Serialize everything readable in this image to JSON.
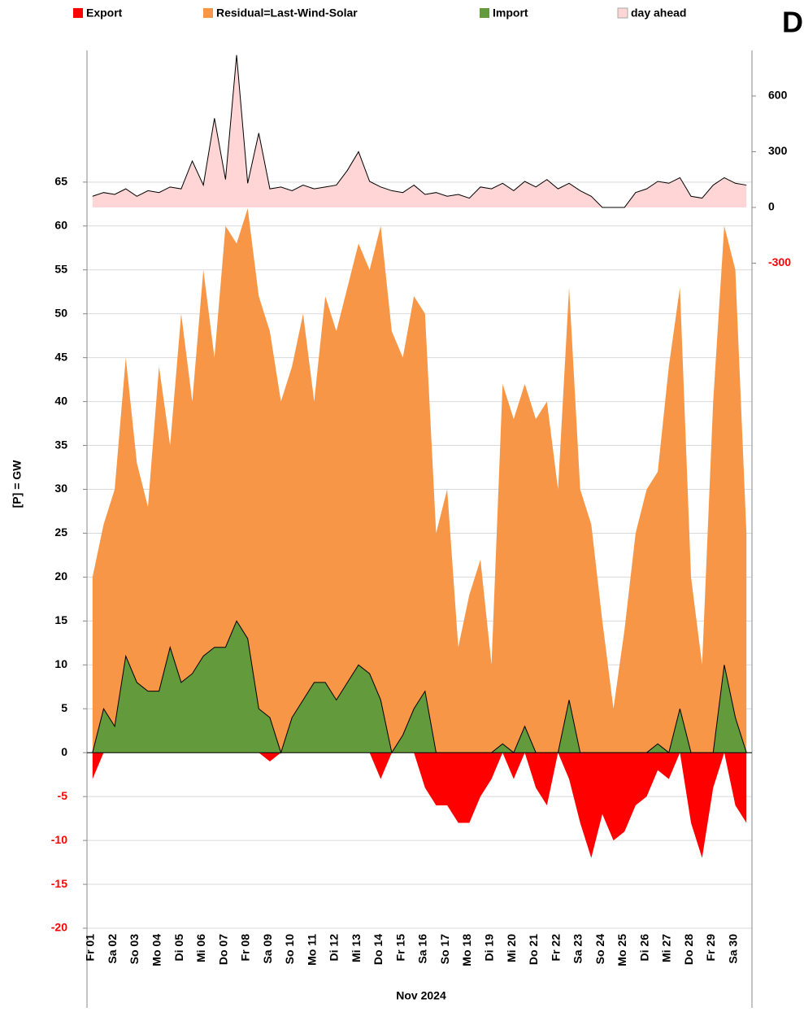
{
  "chart_data": {
    "type": "area",
    "title": "D",
    "x_label": "Nov 2024",
    "y_label": "[P] = GW",
    "categories": [
      "Fr 01",
      null,
      "Sa 02",
      null,
      "So 03",
      null,
      "Mo 04",
      null,
      "Di 05",
      null,
      "Mi 06",
      null,
      "Do 07",
      null,
      "Fr 08",
      null,
      "Sa 09",
      null,
      "So 10",
      null,
      "Mo 11",
      null,
      "Di 12",
      null,
      "Mi 13",
      null,
      "Do 14",
      null,
      "Fr 15",
      null,
      "Sa 16",
      null,
      "So 17",
      null,
      "Mo 18",
      null,
      "Di 19",
      null,
      "Mi 20",
      null,
      "Do 21",
      null,
      "Fr 22",
      null,
      "Sa 23",
      null,
      "So 24",
      null,
      "Mo 25",
      null,
      "Di 26",
      null,
      "Mi 27",
      null,
      "Do 28",
      null,
      "Fr 29",
      null,
      "Sa 30",
      null
    ],
    "series": [
      {
        "name": "Export",
        "color": "#ff0000",
        "values": [
          -3,
          0,
          0,
          0,
          0,
          0,
          0,
          0,
          0,
          0,
          0,
          0,
          0,
          0,
          0,
          0,
          -1,
          0,
          0,
          0,
          0,
          0,
          0,
          0,
          0,
          0,
          -3,
          0,
          0,
          0,
          -4,
          -6,
          -6,
          -8,
          -8,
          -5,
          -3,
          0,
          -3,
          0,
          -4,
          -6,
          0,
          -3,
          -8,
          -12,
          -7,
          -10,
          -9,
          -6,
          -5,
          -2,
          -3,
          0,
          -8,
          -12,
          -4,
          0,
          -6,
          -8
        ]
      },
      {
        "name": "Residual=Last-Wind-Solar",
        "color": "#f79646",
        "values": [
          20,
          26,
          30,
          45,
          33,
          28,
          44,
          35,
          50,
          40,
          55,
          45,
          60,
          58,
          62,
          52,
          48,
          40,
          44,
          50,
          40,
          52,
          48,
          53,
          58,
          55,
          60,
          48,
          45,
          52,
          50,
          25,
          30,
          12,
          18,
          22,
          10,
          42,
          38,
          42,
          38,
          40,
          30,
          53,
          30,
          26,
          15,
          5,
          14,
          25,
          30,
          32,
          44,
          53,
          20,
          10,
          40,
          60,
          55,
          25
        ]
      },
      {
        "name": "Import",
        "color": "#629a3c",
        "values": [
          0,
          5,
          3,
          11,
          8,
          7,
          7,
          12,
          8,
          9,
          11,
          12,
          12,
          15,
          13,
          5,
          4,
          0,
          4,
          6,
          8,
          8,
          6,
          8,
          10,
          9,
          6,
          0,
          2,
          5,
          7,
          0,
          0,
          0,
          0,
          0,
          0,
          1,
          0,
          3,
          0,
          0,
          0,
          6,
          0,
          0,
          0,
          0,
          0,
          0,
          0,
          1,
          0,
          5,
          0,
          0,
          0,
          10,
          4,
          0
        ]
      },
      {
        "name": "day ahead",
        "color": "#ffd5d5",
        "axis": "y2",
        "values": [
          60,
          80,
          70,
          100,
          60,
          90,
          80,
          110,
          100,
          250,
          120,
          480,
          150,
          820,
          130,
          400,
          100,
          110,
          90,
          120,
          100,
          110,
          120,
          200,
          300,
          140,
          110,
          90,
          80,
          120,
          70,
          80,
          60,
          70,
          50,
          110,
          100,
          130,
          90,
          140,
          110,
          150,
          100,
          130,
          90,
          60,
          0,
          0,
          0,
          80,
          100,
          140,
          130,
          160,
          60,
          50,
          120,
          160,
          130,
          120
        ]
      }
    ],
    "ylim": [
      -20,
      80
    ],
    "yticks": [
      -20,
      -15,
      -10,
      -5,
      0,
      5,
      10,
      15,
      20,
      25,
      30,
      35,
      40,
      45,
      50,
      55,
      60,
      65
    ],
    "y2lim": [
      -3880,
      845
    ],
    "y2ticks": [
      -300,
      0,
      300,
      600
    ],
    "negative_tick_color": "#ff0000",
    "grid": true
  }
}
